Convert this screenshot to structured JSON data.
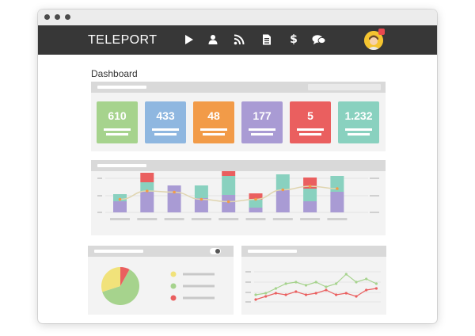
{
  "app": {
    "brand": "TELEPORT"
  },
  "window": {
    "controls": [
      "close",
      "minimize",
      "maximize"
    ]
  },
  "nav": {
    "icons": [
      "play-icon",
      "user-icon",
      "rss-icon",
      "document-icon",
      "dollar-icon",
      "chat-icon"
    ],
    "dollar_glyph": "$"
  },
  "page": {
    "title": "Dashboard"
  },
  "stats": [
    {
      "value": "610",
      "color": "#a6d38d"
    },
    {
      "value": "433",
      "color": "#8fb7e0"
    },
    {
      "value": "48",
      "color": "#f29b48"
    },
    {
      "value": "177",
      "color": "#a99bd4"
    },
    {
      "value": "5",
      "color": "#ea5f5f"
    },
    {
      "value": "1.232",
      "color": "#89d1bf"
    }
  ],
  "colors": {
    "navbar": "#373737",
    "panel": "#f3f3f3",
    "panel_header": "#d9d9d9",
    "purple": "#a99bd4",
    "teal": "#89d1bf",
    "red": "#ea5f5f",
    "yellow": "#f1e27a",
    "green": "#a6d38d",
    "orange": "#f29b48"
  },
  "chart_data": [
    {
      "type": "bar",
      "stacked": true,
      "categories": [
        "1",
        "2",
        "3",
        "4",
        "5",
        "6",
        "7",
        "8",
        "9"
      ],
      "series": [
        {
          "color": "#a99bd4",
          "values": [
            14,
            26,
            34,
            18,
            22,
            6,
            28,
            14,
            26
          ]
        },
        {
          "color": "#89d1bf",
          "values": [
            9,
            12,
            0,
            16,
            24,
            10,
            20,
            16,
            20
          ]
        },
        {
          "color": "#ea5f5f",
          "values": [
            0,
            12,
            0,
            0,
            18,
            8,
            0,
            14,
            0
          ]
        }
      ],
      "line_series": {
        "color": "#f29b48",
        "values": [
          22,
          36,
          34,
          22,
          18,
          22,
          38,
          44,
          40
        ]
      },
      "grid": true,
      "legend": "none"
    },
    {
      "type": "pie",
      "slices": [
        {
          "color": "#a6d38d",
          "value": 62
        },
        {
          "color": "#f1e27a",
          "value": 30
        },
        {
          "color": "#ea5f5f",
          "value": 8
        }
      ],
      "legend": "right"
    },
    {
      "type": "line",
      "series": [
        {
          "color": "#a6d38d",
          "values": [
            14,
            16,
            22,
            28,
            30,
            26,
            30,
            24,
            28,
            40,
            30,
            34,
            28
          ]
        },
        {
          "color": "#ea5f5f",
          "values": [
            8,
            12,
            16,
            14,
            18,
            14,
            16,
            20,
            14,
            16,
            12,
            20,
            22
          ]
        }
      ],
      "grid": true
    }
  ]
}
